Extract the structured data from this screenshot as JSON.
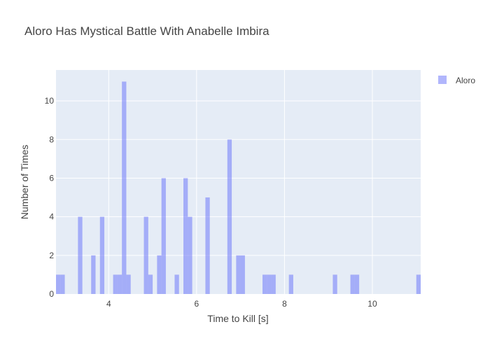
{
  "chart_data": {
    "type": "bar",
    "title": "Aloro Has Mystical Battle With Anabelle Imbira",
    "xlabel": "Time to Kill [s]",
    "ylabel": "Number of Times",
    "xlim": [
      2.8,
      11.1
    ],
    "ylim": [
      0,
      11.6
    ],
    "x_ticks": [
      4,
      6,
      8,
      10
    ],
    "y_ticks": [
      0,
      2,
      4,
      6,
      8,
      10
    ],
    "bin_width": 0.1,
    "grid": true,
    "legend_position": "top-right",
    "series": [
      {
        "name": "Aloro",
        "color": "#636efa",
        "opacity": 0.5,
        "bins": [
          {
            "x0": 2.8,
            "count": 1
          },
          {
            "x0": 2.9,
            "count": 1
          },
          {
            "x0": 3.3,
            "count": 4
          },
          {
            "x0": 3.6,
            "count": 2
          },
          {
            "x0": 3.8,
            "count": 4
          },
          {
            "x0": 4.1,
            "count": 1
          },
          {
            "x0": 4.2,
            "count": 1
          },
          {
            "x0": 4.3,
            "count": 11
          },
          {
            "x0": 4.4,
            "count": 1
          },
          {
            "x0": 4.8,
            "count": 4
          },
          {
            "x0": 4.9,
            "count": 1
          },
          {
            "x0": 5.1,
            "count": 2
          },
          {
            "x0": 5.2,
            "count": 6
          },
          {
            "x0": 5.5,
            "count": 1
          },
          {
            "x0": 5.7,
            "count": 6
          },
          {
            "x0": 5.8,
            "count": 4
          },
          {
            "x0": 6.2,
            "count": 5
          },
          {
            "x0": 6.7,
            "count": 8
          },
          {
            "x0": 6.9,
            "count": 2
          },
          {
            "x0": 7.0,
            "count": 2
          },
          {
            "x0": 7.5,
            "count": 1
          },
          {
            "x0": 7.6,
            "count": 1
          },
          {
            "x0": 7.7,
            "count": 1
          },
          {
            "x0": 8.1,
            "count": 1
          },
          {
            "x0": 9.1,
            "count": 1
          },
          {
            "x0": 9.5,
            "count": 1
          },
          {
            "x0": 9.6,
            "count": 1
          },
          {
            "x0": 11.0,
            "count": 1
          }
        ]
      }
    ]
  }
}
